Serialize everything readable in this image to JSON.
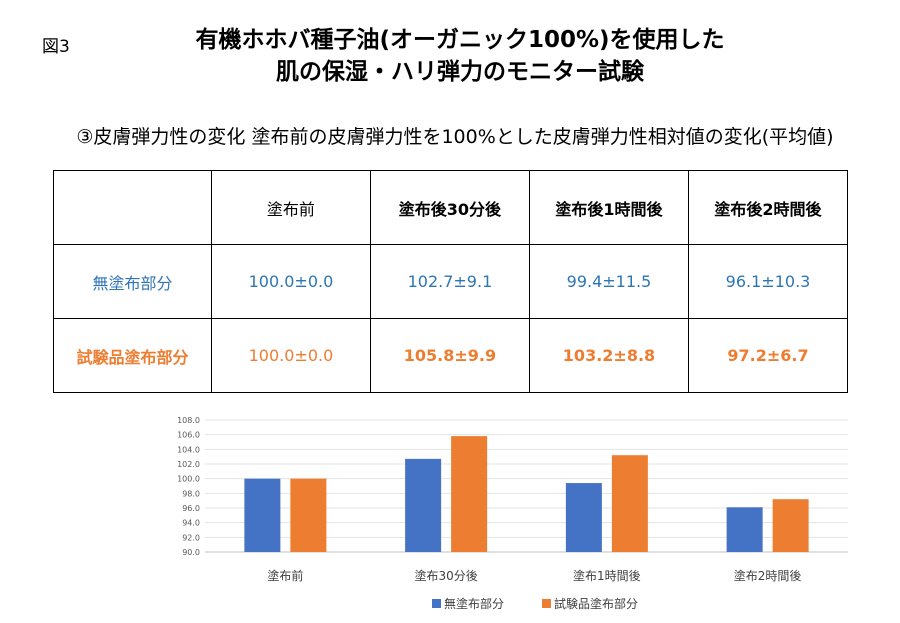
{
  "figure_label": "図3",
  "title_line1": "有機ホホバ種子油(オーガニック100%)を使用した",
  "title_line2": "肌の保湿・ハリ弾力のモニター試験",
  "subtitle": "③皮膚弾力性の変化 塗布前の皮膚弾力性を100%とした皮膚弾力性相対値の変化(平均値)",
  "table": {
    "headers": [
      "",
      "塗布前",
      "塗布後30分後",
      "塗布後1時間後",
      "塗布後2時間後"
    ],
    "rows": [
      {
        "label": "無塗布部分",
        "values": [
          "100.0±0.0",
          "102.7±9.1",
          "99.4±11.5",
          "96.1±10.3"
        ]
      },
      {
        "label": "試験品塗布部分",
        "values": [
          "100.0±0.0",
          "105.8±9.9",
          "103.2±8.8",
          "97.2±6.7"
        ]
      }
    ]
  },
  "chart_data": {
    "type": "bar",
    "categories": [
      "塗布前",
      "塗布30分後",
      "塗布1時間後",
      "塗布2時間後"
    ],
    "series": [
      {
        "name": "無塗布部分",
        "values": [
          100.0,
          102.7,
          99.4,
          96.1
        ],
        "color": "#4472c4"
      },
      {
        "name": "試験品塗布部分",
        "values": [
          100.0,
          105.8,
          103.2,
          97.2
        ],
        "color": "#ed7d31"
      }
    ],
    "ylim": [
      90,
      108
    ],
    "yticks": [
      "90.0",
      "92.0",
      "94.0",
      "96.0",
      "98.0",
      "100.0",
      "102.0",
      "104.0",
      "106.0",
      "108.0"
    ],
    "grid": true,
    "legend": "bottom"
  }
}
